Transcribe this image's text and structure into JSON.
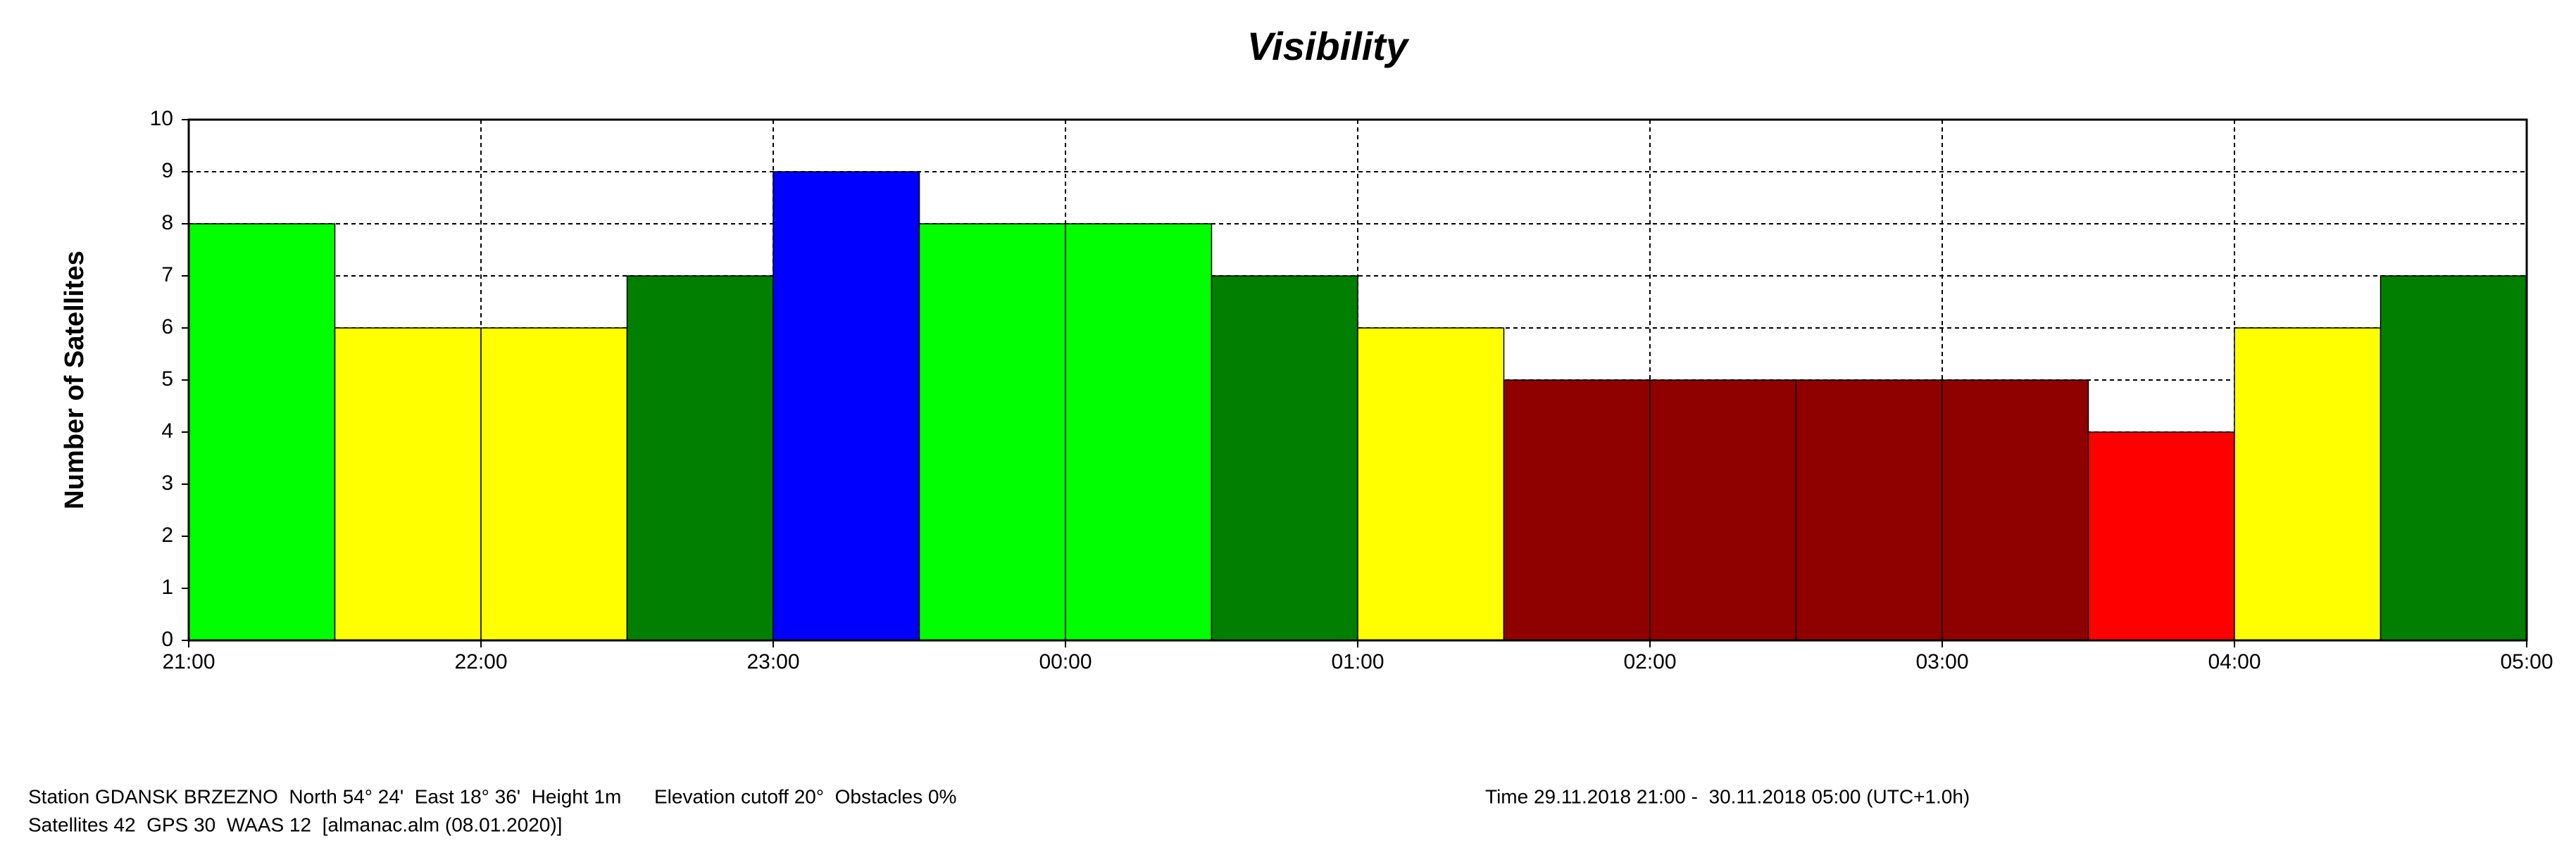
{
  "chart_data": {
    "type": "histogram",
    "title": "Visibility",
    "y_label": "Number of Satellites",
    "bins": [
      21,
      21.5,
      22,
      22.5,
      23,
      23.5,
      24,
      24.5,
      25,
      25.5,
      26,
      26.5,
      27,
      27.5,
      28,
      28.5,
      29
    ],
    "values": [
      8,
      6,
      6,
      7,
      9,
      8,
      8,
      7,
      6,
      5,
      5,
      5,
      5,
      4,
      6,
      7
    ],
    "colors": [
      "#00ff00",
      "#ffff00",
      "#ffff00",
      "#007f00",
      "#0000ff",
      "#00ff00",
      "#00ff00",
      "#007f00",
      "#ffff00",
      "#8f0000",
      "#8f0000",
      "#8f0000",
      "#8f0000",
      "#ff0000",
      "#ffff00",
      "#007f00"
    ],
    "xlim": [
      21,
      29
    ],
    "xticks": [
      {
        "value": 21,
        "label": "21:00"
      },
      {
        "value": 22,
        "label": "22:00"
      },
      {
        "value": 23,
        "label": "23:00"
      },
      {
        "value": 24,
        "label": "00:00"
      },
      {
        "value": 25,
        "label": "01:00"
      },
      {
        "value": 26,
        "label": "02:00"
      },
      {
        "value": 27,
        "label": "03:00"
      },
      {
        "value": 28,
        "label": "04:00"
      },
      {
        "value": 29,
        "label": "05:00"
      }
    ],
    "ylim": [
      0,
      10
    ],
    "yticks": [
      0,
      1,
      2,
      3,
      4,
      5,
      6,
      7,
      8,
      9,
      10
    ],
    "grid": true
  },
  "footer": {
    "station": "Station GDANSK BRZEZNO  North 54° 24'  East 18° 36'  Height 1m      Elevation cutoff 20°  Obstacles 0%",
    "satellites": "Satellites 42  GPS 30  WAAS 12  [almanac.alm (08.01.2020)]",
    "time": "Time 29.11.2018 21:00 -  30.11.2018 05:00 (UTC+1.0h)"
  }
}
